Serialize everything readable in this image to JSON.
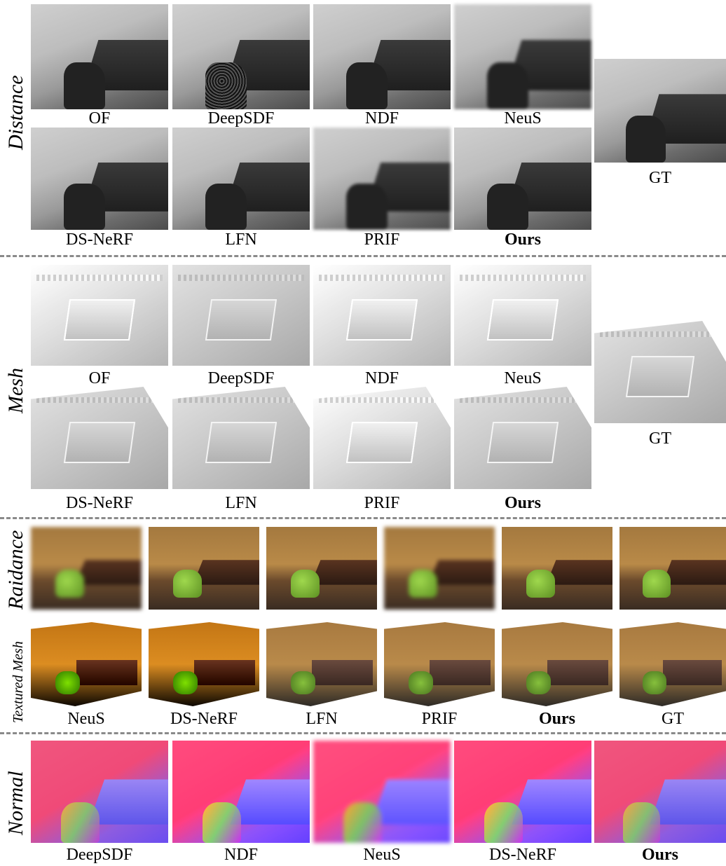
{
  "rows": {
    "distance": {
      "label": "Distance",
      "top": [
        "OF",
        "DeepSDF",
        "NDF",
        "NeuS"
      ],
      "bottom": [
        "DS-NeRF",
        "LFN",
        "PRIF",
        "Ours"
      ],
      "gt": "GT"
    },
    "mesh": {
      "label": "Mesh",
      "top": [
        "OF",
        "DeepSDF",
        "NDF",
        "NeuS"
      ],
      "bottom": [
        "DS-NeRF",
        "LFN",
        "PRIF",
        "Ours"
      ],
      "gt": "GT"
    },
    "radiance": {
      "label": "Raidance"
    },
    "textured_mesh": {
      "label": "Textured Mesh",
      "captions": [
        "NeuS",
        "DS-NeRF",
        "LFN",
        "PRIF",
        "Ours",
        "GT"
      ]
    },
    "normal": {
      "label": "Normal",
      "captions": [
        "DeepSDF",
        "NDF",
        "NeuS",
        "DS-NeRF",
        "Ours"
      ]
    }
  }
}
